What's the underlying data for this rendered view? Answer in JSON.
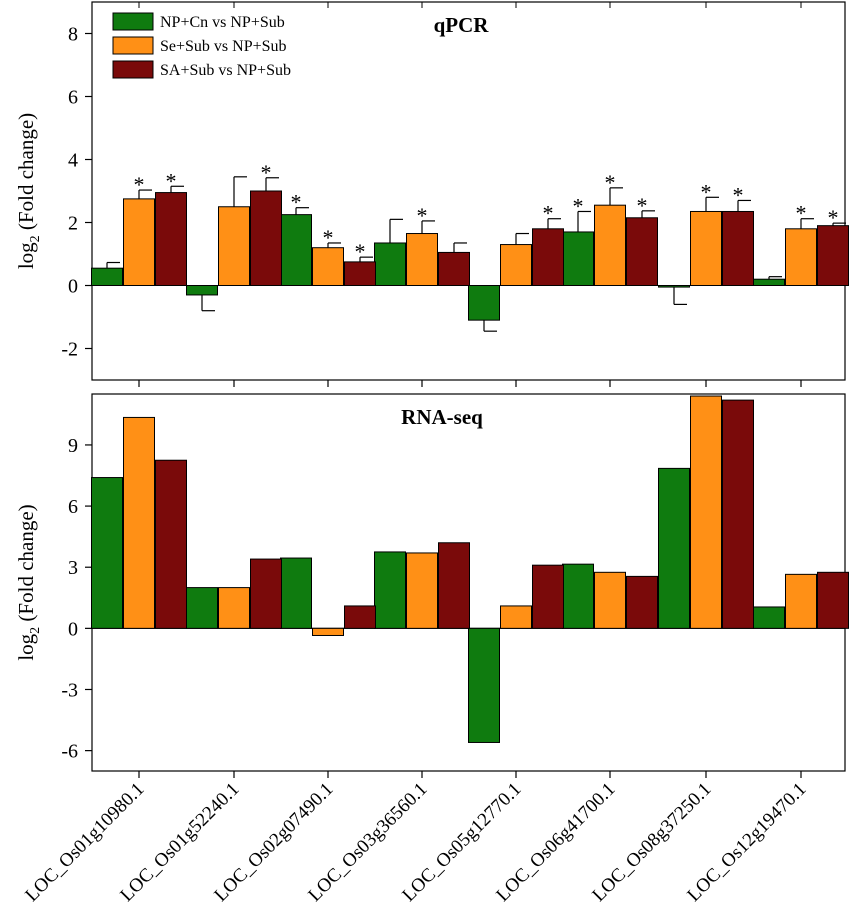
{
  "chart_data": [
    {
      "type": "bar",
      "title": "qPCR",
      "ylabel_main": "log",
      "ylabel_sub": "2",
      "ylabel_rest": " (Fold change)",
      "ylim": [
        -3,
        9
      ],
      "yticks": [
        -2,
        0,
        2,
        4,
        6,
        8
      ],
      "ytick_labels": [
        "-2",
        "0",
        "2",
        "4",
        "6",
        "8"
      ],
      "categories": [
        "LOC_Os01g10980.1",
        "LOC_Os01g52240.1",
        "LOC_Os02g07490.1",
        "LOC_Os03g36560.1",
        "LOC_Os05g12770.1",
        "LOC_Os06g41700.1",
        "LOC_Os08g37250.1",
        "LOC_Os12g19470.1"
      ],
      "legend_position": "top-left",
      "series": [
        {
          "name": "NP+Cn vs NP+Sub",
          "color": "#0f7b0f",
          "values": [
            0.55,
            -0.3,
            2.25,
            1.35,
            -1.1,
            1.7,
            -0.05,
            0.2
          ],
          "errors": [
            0.18,
            0.5,
            0.22,
            0.75,
            0.35,
            0.65,
            0.55,
            0.08
          ],
          "significant": [
            false,
            false,
            true,
            false,
            false,
            true,
            false,
            false
          ]
        },
        {
          "name": "Se+Sub vs NP+Sub",
          "color": "#ff9016",
          "values": [
            2.75,
            2.5,
            1.2,
            1.65,
            1.3,
            2.55,
            2.35,
            1.8
          ],
          "errors": [
            0.28,
            0.95,
            0.15,
            0.4,
            0.35,
            0.55,
            0.45,
            0.32
          ],
          "significant": [
            true,
            false,
            true,
            true,
            false,
            true,
            true,
            true
          ]
        },
        {
          "name": "SA+Sub vs NP+Sub",
          "color": "#7a0a0a",
          "values": [
            2.95,
            3.0,
            0.75,
            1.05,
            1.8,
            2.15,
            2.35,
            1.9
          ],
          "errors": [
            0.2,
            0.42,
            0.15,
            0.3,
            0.32,
            0.22,
            0.35,
            0.08
          ],
          "significant": [
            true,
            true,
            true,
            false,
            true,
            true,
            true,
            true
          ]
        }
      ]
    },
    {
      "type": "bar",
      "title": "RNA-seq",
      "ylabel_main": "log",
      "ylabel_sub": "2",
      "ylabel_rest": " (Fold change)",
      "ylim": [
        -7,
        11.5
      ],
      "yticks": [
        -6,
        -3,
        0,
        3,
        6,
        9
      ],
      "ytick_labels": [
        "-6",
        "-3",
        "0",
        "3",
        "6",
        "9"
      ],
      "categories": [
        "LOC_Os01g10980.1",
        "LOC_Os01g52240.1",
        "LOC_Os02g07490.1",
        "LOC_Os03g36560.1",
        "LOC_Os05g12770.1",
        "LOC_Os06g41700.1",
        "LOC_Os08g37250.1",
        "LOC_Os12g19470.1"
      ],
      "series": [
        {
          "name": "NP+Cn vs NP+Sub",
          "color": "#0f7b0f",
          "values": [
            7.4,
            2.0,
            3.45,
            3.75,
            -5.6,
            3.15,
            7.85,
            1.05
          ]
        },
        {
          "name": "Se+Sub vs NP+Sub",
          "color": "#ff9016",
          "values": [
            10.35,
            2.0,
            -0.35,
            3.7,
            1.1,
            2.75,
            11.4,
            2.65
          ]
        },
        {
          "name": "SA+Sub vs NP+Sub",
          "color": "#7a0a0a",
          "values": [
            8.25,
            3.4,
            1.1,
            4.2,
            3.1,
            2.55,
            11.2,
            2.75
          ]
        }
      ]
    }
  ],
  "significance_marker": "*"
}
